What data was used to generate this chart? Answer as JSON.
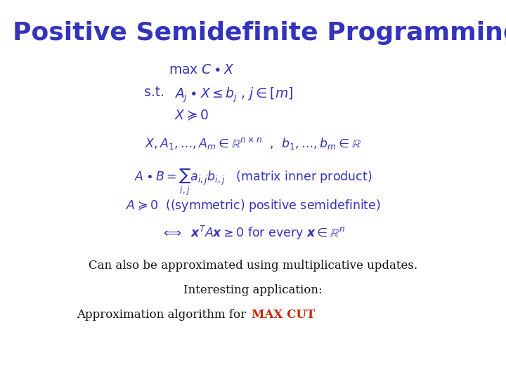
{
  "title": "Positive Semidefinite Programming",
  "title_color": "#3333BB",
  "title_fontsize": 26,
  "bg_color": "#FFFFFF",
  "blue_color": "#3333BB",
  "red_color": "#CC2200",
  "black_color": "#111111",
  "line1": "max $C \\bullet X$",
  "line2_pre": "s.t.  ",
  "line2_math": "$A_j \\bullet X \\leq b_j$ , $j \\in [m]$",
  "line3": "$X \\succeq 0$",
  "line4": "$X, A_1, \\ldots, A_m \\in \\mathbb{R}^{n \\times n}$  ,  $b_1, \\ldots, b_m \\in \\mathbb{R}$",
  "line5": "$A \\bullet B = \\sum_{i,j} a_{i,j} b_{i,j}$   (matrix inner product)",
  "line6": "$A \\succeq 0$  ((symmetric) positive semidefinite)",
  "line7": "$\\Longleftrightarrow$  $\\boldsymbol{x}^T A \\boldsymbol{x} \\geq 0$ for every $\\boldsymbol{x} \\in \\mathbb{R}^n$",
  "bottom1": "Can also be approximated using multiplicative updates.",
  "bottom2": "Interesting application:",
  "bottom3a": "Approximation algorithm for ",
  "bottom3b": "MAX CUT"
}
